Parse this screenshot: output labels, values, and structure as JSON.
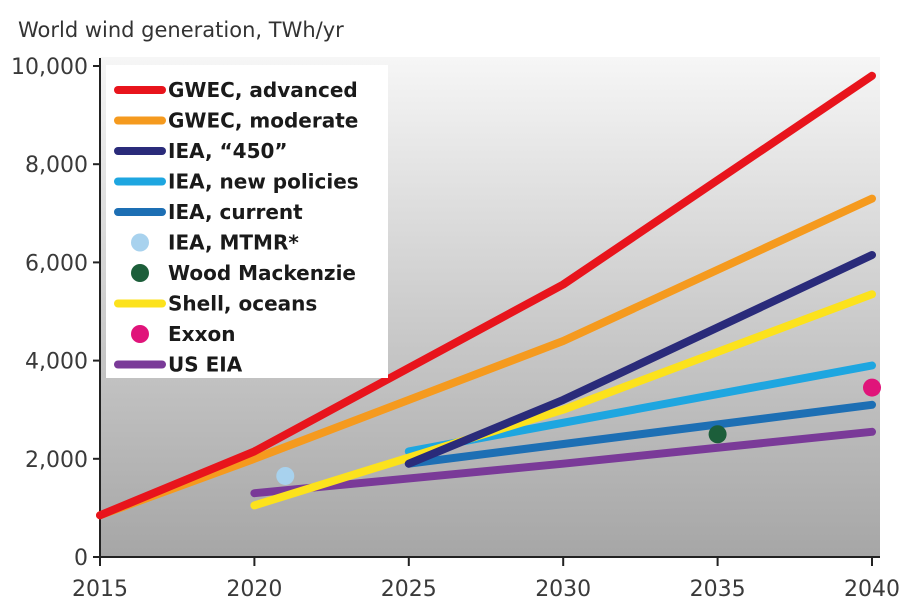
{
  "chart_data": {
    "type": "line",
    "ylabel": "World wind generation, TWh/yr",
    "xlim": [
      2015,
      2040
    ],
    "ylim": [
      0,
      10000
    ],
    "x_ticks": [
      "2015",
      "2020",
      "2025",
      "2030",
      "2035",
      "2040"
    ],
    "y_ticks": [
      "0",
      "2,000",
      "4,000",
      "6,000",
      "8,000",
      "10,000"
    ],
    "y_tick_values": [
      0,
      2000,
      4000,
      6000,
      8000,
      10000
    ],
    "x_tick_values": [
      2015,
      2020,
      2025,
      2030,
      2035,
      2040
    ],
    "legend_position": "top-left",
    "grid": false,
    "series": [
      {
        "name": "GWEC, advanced",
        "kind": "line",
        "color": "#e8141c",
        "x": [
          2015,
          2020,
          2030,
          2040
        ],
        "y": [
          850,
          2150,
          5550,
          9800
        ]
      },
      {
        "name": "GWEC, moderate",
        "kind": "line",
        "color": "#f59a1e",
        "x": [
          2015,
          2020,
          2030,
          2040
        ],
        "y": [
          850,
          2000,
          4400,
          7300
        ]
      },
      {
        "name": "IEA, “450”",
        "kind": "line",
        "color": "#2a2b7a",
        "x": [
          2025,
          2030,
          2040
        ],
        "y": [
          1900,
          3200,
          6150
        ]
      },
      {
        "name": "IEA, new policies",
        "kind": "line",
        "color": "#1ea6e0",
        "x": [
          2025,
          2040
        ],
        "y": [
          2150,
          3900
        ]
      },
      {
        "name": "IEA, current",
        "kind": "line",
        "color": "#1d6fb4",
        "x": [
          2025,
          2040
        ],
        "y": [
          1900,
          3100
        ]
      },
      {
        "name": "IEA, MTMR*",
        "kind": "point",
        "color": "#a8d2ee",
        "x": [
          2021
        ],
        "y": [
          1650
        ]
      },
      {
        "name": "Wood Mackenzie",
        "kind": "point",
        "color": "#1c5e3a",
        "x": [
          2035
        ],
        "y": [
          2500
        ]
      },
      {
        "name": "Shell, oceans",
        "kind": "line",
        "color": "#fce21c",
        "x": [
          2020,
          2030,
          2040
        ],
        "y": [
          1050,
          3000,
          5350
        ]
      },
      {
        "name": "Exxon",
        "kind": "point",
        "color": "#e0147a",
        "x": [
          2040
        ],
        "y": [
          3450
        ]
      },
      {
        "name": "US EIA",
        "kind": "line",
        "color": "#7a3a98",
        "x": [
          2020,
          2030,
          2040
        ],
        "y": [
          1300,
          1900,
          2550
        ]
      }
    ]
  }
}
